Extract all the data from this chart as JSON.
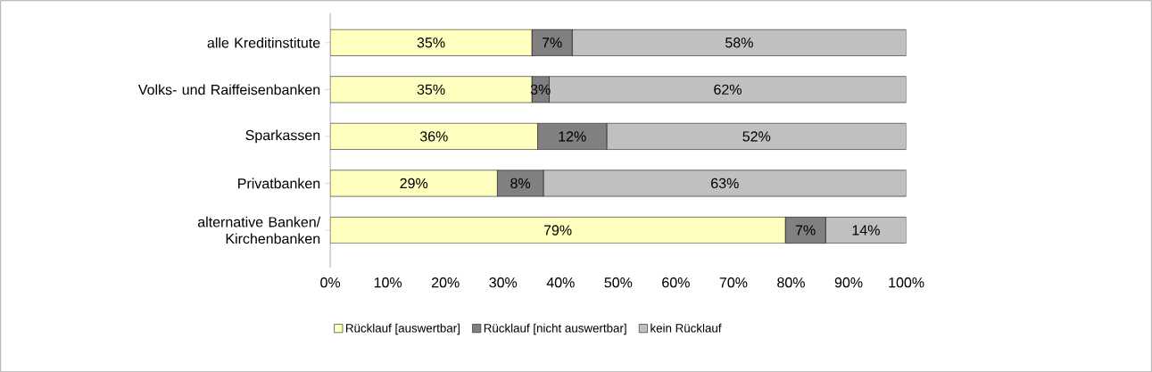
{
  "chart_data": {
    "type": "bar",
    "orientation": "horizontal",
    "stacked": true,
    "categories": [
      "alle Kreditinstitute",
      "Volks- und Raiffeisenbanken",
      "Sparkassen",
      "Privatbanken",
      "alternative Banken/ Kirchenbanken"
    ],
    "series": [
      {
        "name": "Rücklauf [auswertbar]",
        "color": "#ffffc0",
        "values": [
          35,
          35,
          36,
          29,
          79
        ],
        "value_labels": [
          "35%",
          "35%",
          "36%",
          "29%",
          "79%"
        ]
      },
      {
        "name": "Rücklauf [nicht auswertbar]",
        "color": "#808080",
        "values": [
          7,
          3,
          12,
          8,
          7
        ],
        "value_labels": [
          "7%",
          "3%",
          "12%",
          "8%",
          "7%"
        ]
      },
      {
        "name": "kein Rücklauf",
        "color": "#c0c0c0",
        "values": [
          58,
          62,
          52,
          63,
          14
        ],
        "value_labels": [
          "58%",
          "62%",
          "52%",
          "63%",
          "14%"
        ]
      }
    ],
    "xlim": [
      0,
      100
    ],
    "xticks": [
      {
        "value": 0,
        "label": "0%"
      },
      {
        "value": 10,
        "label": "10%"
      },
      {
        "value": 20,
        "label": "20%"
      },
      {
        "value": 30,
        "label": "30%"
      },
      {
        "value": 40,
        "label": "40%"
      },
      {
        "value": 50,
        "label": "50%"
      },
      {
        "value": 60,
        "label": "60%"
      },
      {
        "value": 70,
        "label": "70%"
      },
      {
        "value": 80,
        "label": "80%"
      },
      {
        "value": 90,
        "label": "90%"
      },
      {
        "value": 100,
        "label": "100%"
      }
    ],
    "legend": "bottom"
  }
}
